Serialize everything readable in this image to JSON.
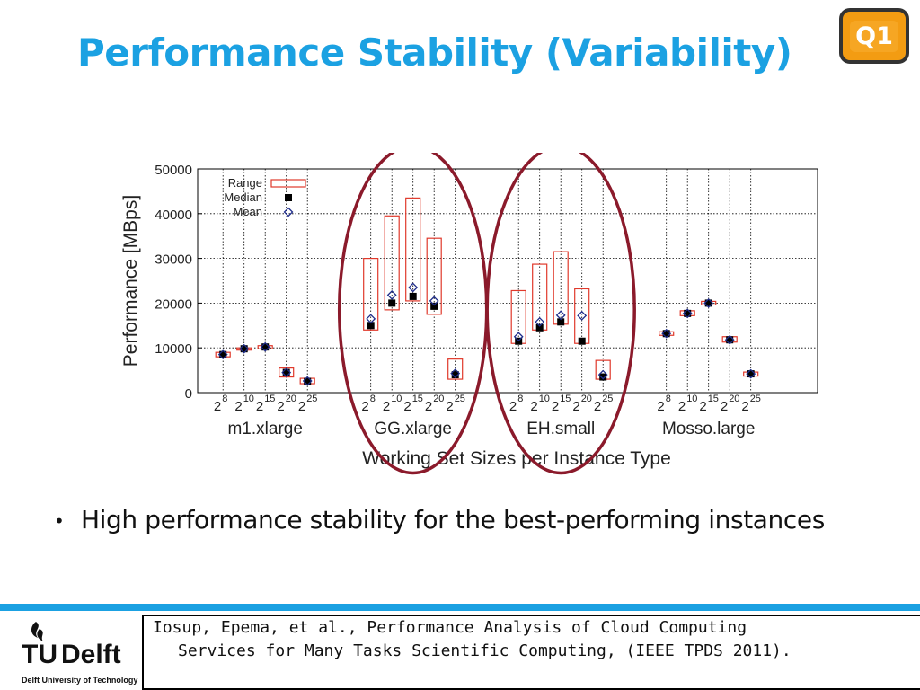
{
  "title": "Performance Stability (Variability)",
  "badge": "Q1",
  "bullet": "High performance stability for the best-performing instances",
  "citation": {
    "line1": "Iosup, Epema, et al., Performance Analysis of Cloud Computing",
    "line2": "Services for Many Tasks Scientific Computing, (IEEE TPDS 2011)."
  },
  "logo": {
    "brand_tu": "TU",
    "brand_delft": "Delft",
    "subtitle": "Delft University of Technology"
  },
  "colors": {
    "title": "#1ba1e2",
    "range": "#e0392b",
    "median": "#000000",
    "mean": "#1f2d8a",
    "ellipse": "#8b1a2b",
    "footer": "#1ba1e2"
  },
  "chart_data": {
    "type": "scatter",
    "ylabel": "Performance [MBps]",
    "xlabel": "Working Set Sizes per Instance Type",
    "ylim": [
      0,
      50000
    ],
    "yticks": [
      0,
      10000,
      20000,
      30000,
      40000,
      50000
    ],
    "grid": true,
    "legend": {
      "position": "top-left",
      "entries": [
        "Range",
        "Median",
        "Mean"
      ]
    },
    "working_set_exponents": [
      "8",
      "10",
      "15",
      "20",
      "25"
    ],
    "groups": [
      {
        "name": "m1.xlarge",
        "items": [
          {
            "exp": "8",
            "min": 8000,
            "max": 9000,
            "median": 8500,
            "mean": 8500
          },
          {
            "exp": "10",
            "min": 9500,
            "max": 10000,
            "median": 9800,
            "mean": 9800
          },
          {
            "exp": "15",
            "min": 9800,
            "max": 10500,
            "median": 10200,
            "mean": 10200
          },
          {
            "exp": "20",
            "min": 3500,
            "max": 5500,
            "median": 4500,
            "mean": 4500
          },
          {
            "exp": "25",
            "min": 2000,
            "max": 3200,
            "median": 2500,
            "mean": 2600
          }
        ]
      },
      {
        "name": "GG.xlarge",
        "items": [
          {
            "exp": "8",
            "min": 14000,
            "max": 30000,
            "median": 15000,
            "mean": 16500
          },
          {
            "exp": "10",
            "min": 18500,
            "max": 39500,
            "median": 20000,
            "mean": 21800
          },
          {
            "exp": "15",
            "min": 20500,
            "max": 43500,
            "median": 21500,
            "mean": 23500
          },
          {
            "exp": "20",
            "min": 17500,
            "max": 34500,
            "median": 19300,
            "mean": 20500
          },
          {
            "exp": "25",
            "min": 3000,
            "max": 7500,
            "median": 4000,
            "mean": 4300
          }
        ]
      },
      {
        "name": "EH.small",
        "items": [
          {
            "exp": "8",
            "min": 11000,
            "max": 22800,
            "median": 11500,
            "mean": 12500
          },
          {
            "exp": "10",
            "min": 14000,
            "max": 28700,
            "median": 14500,
            "mean": 15800
          },
          {
            "exp": "15",
            "min": 15300,
            "max": 31500,
            "median": 15800,
            "mean": 17300
          },
          {
            "exp": "20",
            "min": 11000,
            "max": 23200,
            "median": 11500,
            "mean": 17200
          },
          {
            "exp": "25",
            "min": 3000,
            "max": 7200,
            "median": 3500,
            "mean": 4000
          }
        ]
      },
      {
        "name": "Mosso.large",
        "items": [
          {
            "exp": "8",
            "min": 12800,
            "max": 13600,
            "median": 13200,
            "mean": 13200
          },
          {
            "exp": "10",
            "min": 17200,
            "max": 18300,
            "median": 17700,
            "mean": 17700
          },
          {
            "exp": "15",
            "min": 19600,
            "max": 20400,
            "median": 20000,
            "mean": 20000
          },
          {
            "exp": "20",
            "min": 11300,
            "max": 12500,
            "median": 11800,
            "mean": 11800
          },
          {
            "exp": "25",
            "min": 3700,
            "max": 4600,
            "median": 4200,
            "mean": 4200
          }
        ]
      }
    ],
    "highlighted_groups": [
      "GG.xlarge",
      "EH.small"
    ]
  }
}
